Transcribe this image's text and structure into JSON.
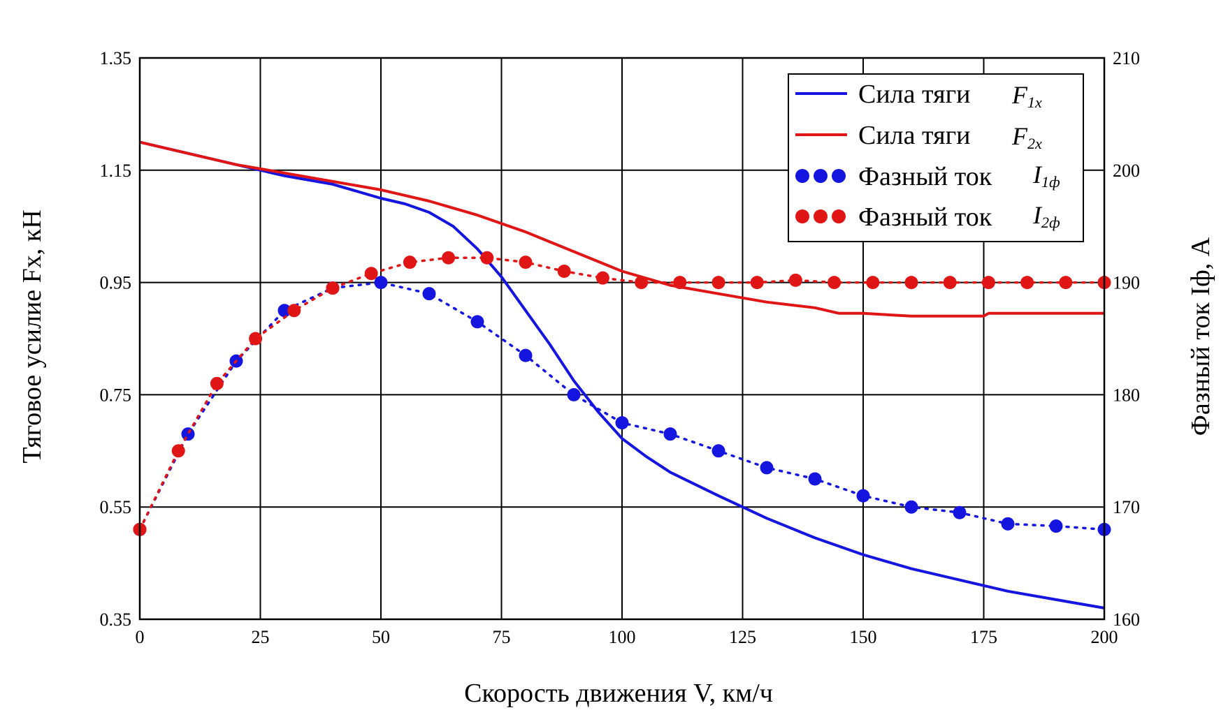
{
  "chart_data": {
    "type": "line",
    "title": "",
    "xlabel": "Скорость движения V, км/ч",
    "ylabel_left": "Тяговое усилие Fx, кН",
    "ylabel_right": "Фазный ток Iф, А",
    "xlim": [
      0,
      200
    ],
    "ylim_left": [
      0.35,
      1.35
    ],
    "ylim_right": [
      160,
      210
    ],
    "x_ticks": [
      "0",
      "25",
      "50",
      "75",
      "100",
      "125",
      "150",
      "175",
      "200"
    ],
    "y_left_ticks": [
      "0.35",
      "0.55",
      "0.75",
      "0.95",
      "1.15",
      "1.35"
    ],
    "y_right_ticks": [
      "160",
      "170",
      "180",
      "190",
      "200",
      "210"
    ],
    "grid": true,
    "legend_position": "top-right",
    "series": [
      {
        "name": "Сила тяги F1x",
        "legend_label": "Сила тяги",
        "legend_symbol": "F",
        "legend_sub": "1x",
        "axis": "left",
        "style": "solid",
        "color": "#1515e0",
        "x": [
          0,
          10,
          20,
          30,
          40,
          50,
          55,
          60,
          65,
          70,
          75,
          80,
          85,
          90,
          95,
          100,
          105,
          110,
          120,
          130,
          140,
          150,
          160,
          170,
          180,
          190,
          200
        ],
        "values": [
          1.2,
          1.18,
          1.16,
          1.14,
          1.125,
          1.1,
          1.09,
          1.075,
          1.05,
          1.01,
          0.96,
          0.9,
          0.84,
          0.775,
          0.72,
          0.672,
          0.64,
          0.612,
          0.57,
          0.53,
          0.495,
          0.465,
          0.44,
          0.42,
          0.4,
          0.385,
          0.37
        ]
      },
      {
        "name": "Сила тяги F2x",
        "legend_label": "Сила тяги",
        "legend_symbol": "F",
        "legend_sub": "2x",
        "axis": "left",
        "style": "solid",
        "color": "#e01515",
        "x": [
          0,
          10,
          20,
          30,
          40,
          50,
          60,
          70,
          80,
          90,
          100,
          110,
          120,
          130,
          140,
          145,
          150,
          160,
          175,
          176,
          200
        ],
        "values": [
          1.2,
          1.18,
          1.16,
          1.145,
          1.13,
          1.115,
          1.095,
          1.07,
          1.04,
          1.005,
          0.97,
          0.945,
          0.93,
          0.915,
          0.905,
          0.895,
          0.895,
          0.89,
          0.89,
          0.895,
          0.895
        ]
      },
      {
        "name": "Фазный ток I1ф",
        "legend_label": "Фазный ток",
        "legend_symbol": "I",
        "legend_sub": "1ф",
        "axis": "right",
        "style": "dotted-markers",
        "color": "#1515e0",
        "x": [
          0,
          10,
          20,
          30,
          40,
          50,
          60,
          70,
          80,
          90,
          100,
          110,
          120,
          130,
          140,
          150,
          160,
          170,
          180,
          190,
          200
        ],
        "values": [
          168,
          176.5,
          183,
          187.5,
          189.5,
          190,
          189,
          186.5,
          183.5,
          180,
          177.5,
          176.5,
          175,
          173.5,
          172.5,
          171,
          170,
          169.5,
          168.5,
          168.3,
          168
        ]
      },
      {
        "name": "Фазный ток I2ф",
        "legend_label": "Фазный ток",
        "legend_symbol": "I",
        "legend_sub": "2ф",
        "axis": "right",
        "style": "dotted-markers",
        "color": "#e01515",
        "x": [
          0,
          8,
          16,
          24,
          32,
          40,
          48,
          56,
          64,
          72,
          80,
          88,
          96,
          104,
          112,
          120,
          128,
          136,
          144,
          152,
          160,
          168,
          176,
          184,
          192,
          200
        ],
        "values": [
          168,
          175,
          181,
          185,
          187.5,
          189.5,
          190.8,
          191.8,
          192.2,
          192.2,
          191.8,
          191,
          190.4,
          190,
          190,
          190,
          190,
          190.2,
          190,
          190,
          190,
          190,
          190,
          190,
          190,
          190
        ]
      }
    ]
  }
}
